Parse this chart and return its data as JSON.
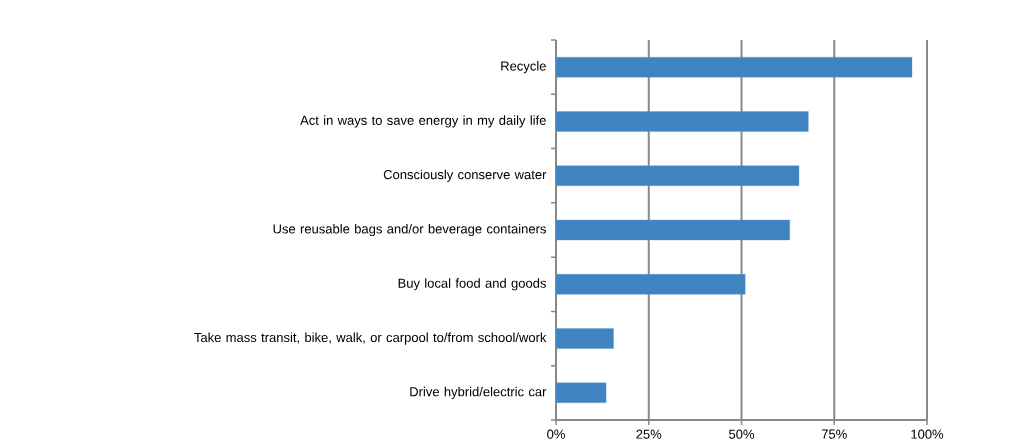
{
  "chart_data": {
    "type": "bar",
    "orientation": "horizontal",
    "categories": [
      "Recycle",
      "Act in ways to save energy in my daily life",
      "Consciously conserve water",
      "Use reusable bags and/or beverage containers",
      "Buy local food and goods",
      "Take mass transit, bike, walk, or carpool to/from school/work",
      "Drive hybrid/electric car"
    ],
    "values": [
      96,
      68,
      65.5,
      63,
      51,
      15.5,
      13.5
    ],
    "color": "#3f83c1",
    "xlim": [
      0,
      100
    ],
    "xticks": [
      {
        "value": 0,
        "label": "0%"
      },
      {
        "value": 25,
        "label": "25%"
      },
      {
        "value": 50,
        "label": "50%"
      },
      {
        "value": 75,
        "label": "75%"
      },
      {
        "value": 100,
        "label": "100%"
      }
    ],
    "grid": "x"
  }
}
